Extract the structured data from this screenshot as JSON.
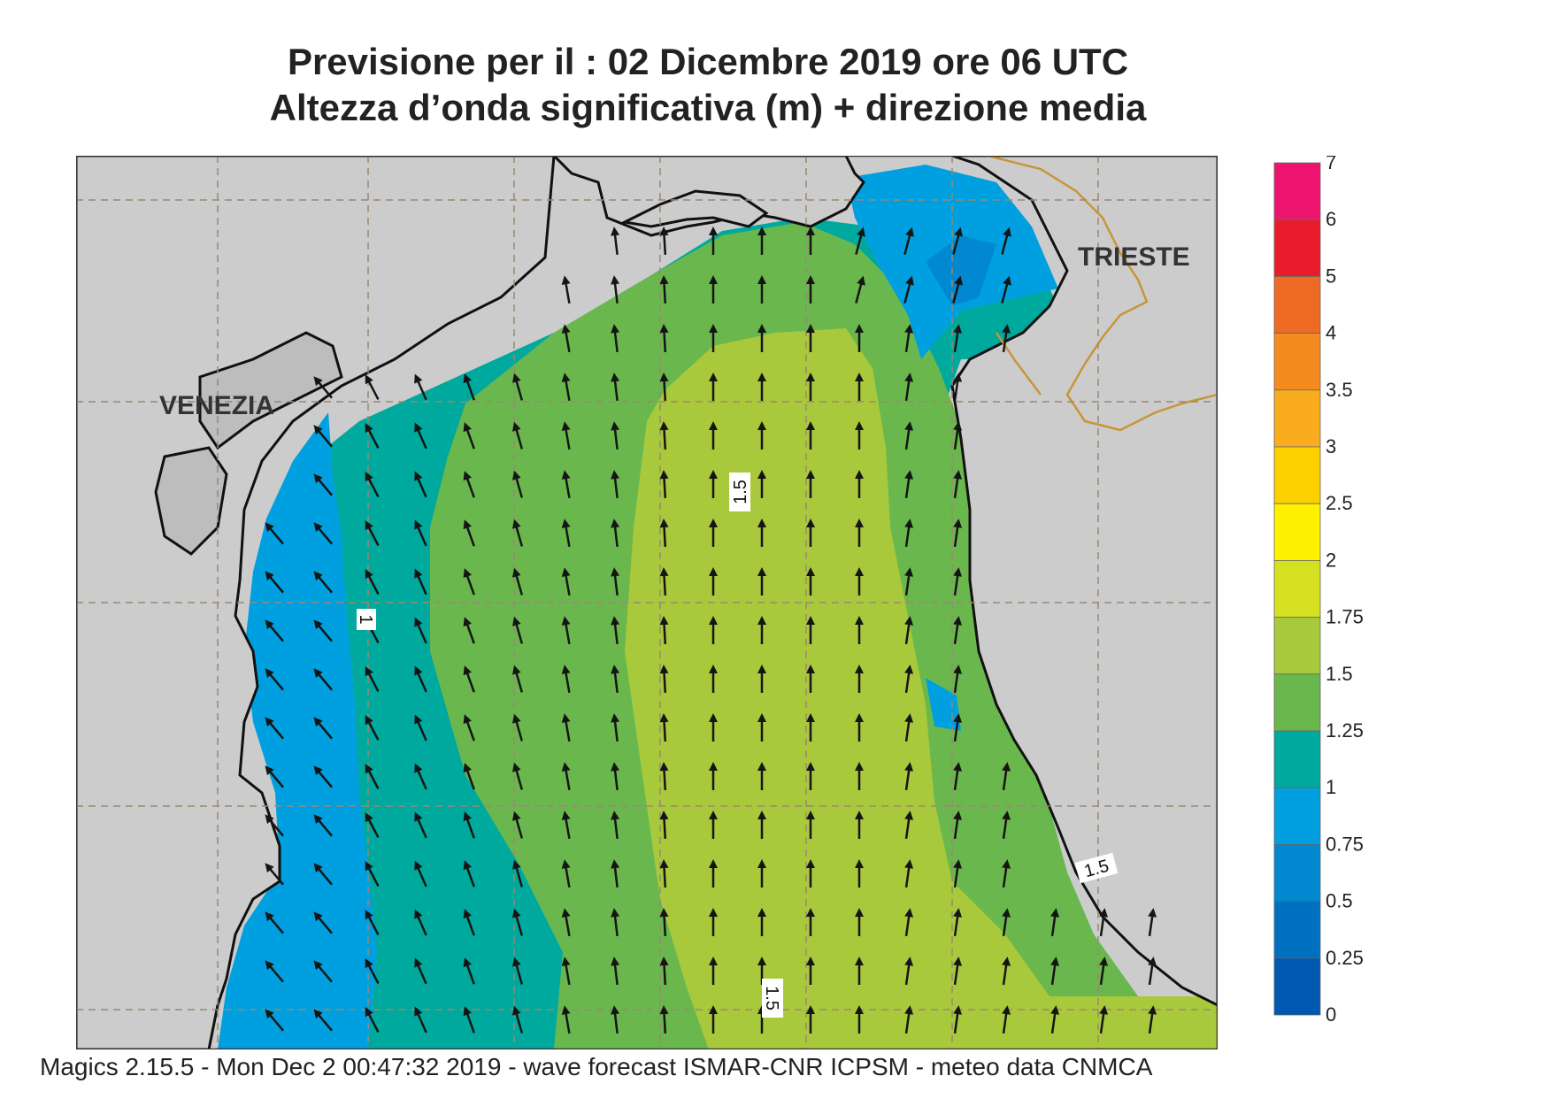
{
  "title": {
    "line1": "Previsione per il  :  02 Dicembre  2019   ore 06 UTC",
    "line2": "Altezza d’onda significativa (m) + direzione media"
  },
  "map": {
    "cities": [
      {
        "name": "VENEZIA"
      },
      {
        "name": "TRIESTE"
      }
    ],
    "contour_labels": [
      "1",
      "1.5",
      "1.5",
      "1.5"
    ]
  },
  "legend": {
    "labels": [
      "7",
      "6",
      "5",
      "4",
      "3.5",
      "3",
      "2.5",
      "2",
      "1.75",
      "1.5",
      "1.25",
      "1",
      "0.75",
      "0.5",
      "0.25",
      "0"
    ],
    "colors": [
      "#ed1470",
      "#e81c2b",
      "#ef6a25",
      "#f58b1f",
      "#f9ad1e",
      "#fdd000",
      "#fff200",
      "#d5e021",
      "#a9c93c",
      "#6ab84d",
      "#00a99d",
      "#00a0e0",
      "#0088d0",
      "#0070c0",
      "#0058b0"
    ]
  },
  "colors": {
    "land": "#cccccc",
    "grid": "#9a8870",
    "border": "#c8953a",
    "arrow": "#151515"
  },
  "footer": "Magics 2.15.5 - Mon Dec  2 00:47:32 2019 - wave forecast  ISMAR-CNR  ICPSM - meteo data   CNMCA"
}
